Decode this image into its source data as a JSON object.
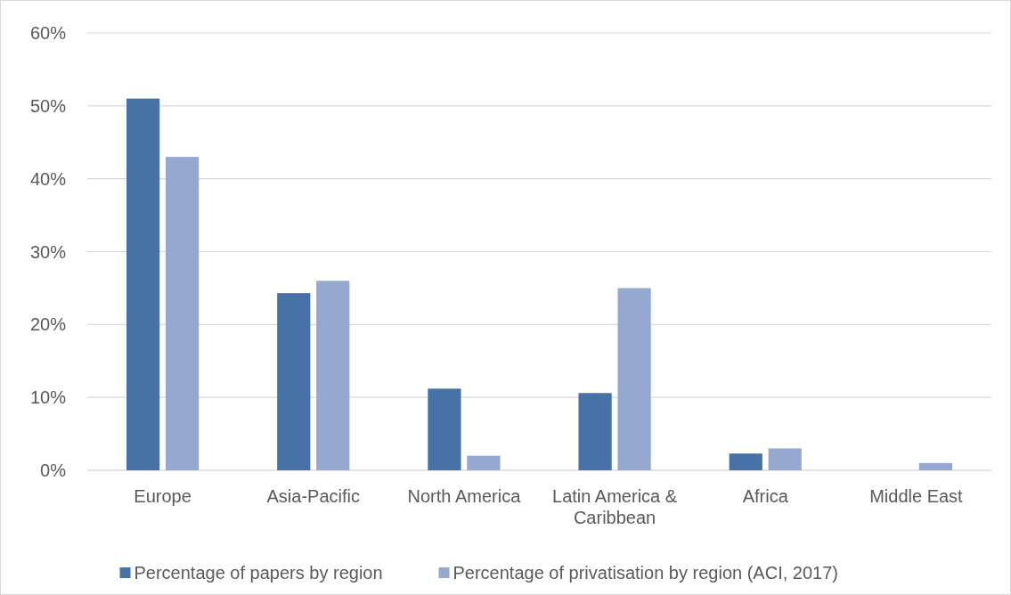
{
  "chart_data": {
    "type": "bar",
    "categories": [
      "Europe",
      "Asia-Pacific",
      "North America",
      "Latin America & Caribbean",
      "Africa",
      "Middle East"
    ],
    "series": [
      {
        "name": "Percentage of papers by region",
        "color": "#4672a7",
        "values": [
          51,
          24.3,
          11.2,
          10.6,
          2.3,
          0
        ]
      },
      {
        "name": "Percentage of privatisation by region (ACI, 2017)",
        "color": "#95a9d0",
        "values": [
          43,
          26,
          2,
          25,
          3,
          1
        ]
      }
    ],
    "ylim": [
      0,
      60
    ],
    "yticks": [
      {
        "value": 0,
        "label": "0%"
      },
      {
        "value": 10,
        "label": "10%"
      },
      {
        "value": 20,
        "label": "20%"
      },
      {
        "value": 30,
        "label": "30%"
      },
      {
        "value": 40,
        "label": "40%"
      },
      {
        "value": 50,
        "label": "50%"
      },
      {
        "value": 60,
        "label": "60%"
      }
    ],
    "grid": "y",
    "legend": "bottom"
  }
}
